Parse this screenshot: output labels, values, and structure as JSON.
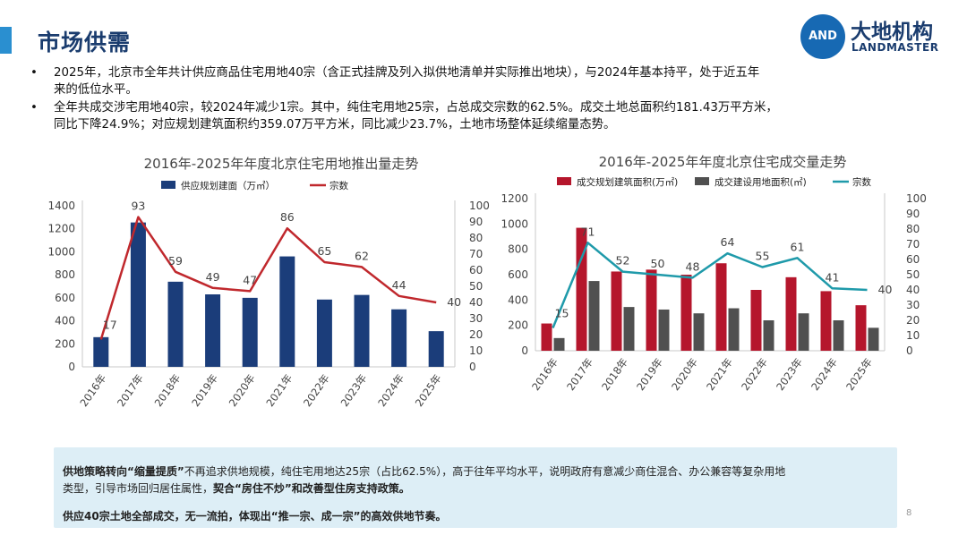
{
  "header": {
    "title": "市场供需",
    "logo_cn": "大地机构",
    "logo_en": "LANDMASTER",
    "logo_mark": "AND"
  },
  "bullets": [
    {
      "marker": "•",
      "lines": [
        "2025年，北京市全年共计供应商品住宅用地40宗（含正式挂牌及列入拟供地清单并实际推出地块），与2024年基本持平，处于近五年",
        "来的低位水平。"
      ]
    },
    {
      "marker": "•",
      "lines": [
        "全年共成交涉宅用地40宗，较2024年减少1宗。其中，纯住宅用地25宗，占总成交宗数的62.5%。成交土地总面积约181.43万平方米，",
        "同比下降24.9%；对应规划建筑面积约359.07万平方米，同比减少23.7%，土地市场整体延续缩量态势。"
      ]
    }
  ],
  "chart_data": [
    {
      "type": "bar",
      "title": "2016年-2025年年度北京住宅用地推出量走势",
      "categories": [
        "2016年",
        "2017年",
        "2018年",
        "2019年",
        "2020年",
        "2021年",
        "2022年",
        "2023年",
        "2024年",
        "2025年"
      ],
      "series": [
        {
          "name": "供应规划建面（万㎡）",
          "type": "bar",
          "axis": "left",
          "color": "#1b3d7a",
          "values": [
            258,
            1255,
            740,
            630,
            600,
            960,
            585,
            625,
            500,
            310
          ]
        },
        {
          "name": "宗数",
          "type": "line",
          "axis": "right",
          "color": "#c0282d",
          "values": [
            17,
            93,
            59,
            49,
            47,
            86,
            65,
            62,
            44,
            40
          ],
          "labels": [
            "17",
            "93",
            "59",
            "49",
            "47",
            "86",
            "65",
            "62",
            "44",
            "40"
          ]
        }
      ],
      "ylim": [
        0,
        1400
      ],
      "yticks": [
        0,
        200,
        400,
        600,
        800,
        1000,
        1200,
        1400
      ],
      "y2lim": [
        0,
        100
      ],
      "y2ticks": [
        0,
        10,
        20,
        30,
        40,
        50,
        60,
        70,
        80,
        90,
        100
      ],
      "legend": "top",
      "grid": false
    },
    {
      "type": "bar",
      "title": "2016年-2025年年度北京住宅成交量走势",
      "categories": [
        "2016年",
        "2017年",
        "2018年",
        "2019年",
        "2020年",
        "2021年",
        "2022年",
        "2023年",
        "2024年",
        "2025年"
      ],
      "series": [
        {
          "name": "成交规划建筑面积(万㎡)",
          "type": "bar",
          "axis": "left",
          "color": "#b5162c",
          "values": [
            215,
            970,
            625,
            640,
            600,
            690,
            480,
            580,
            470,
            359
          ]
        },
        {
          "name": "成交建设用地面积(㎡)",
          "type": "bar",
          "axis": "left",
          "color": "#505050",
          "values": [
            100,
            550,
            345,
            325,
            295,
            335,
            240,
            295,
            240,
            181
          ]
        },
        {
          "name": "宗数",
          "type": "line",
          "axis": "right",
          "color": "#1f9aaa",
          "values": [
            15,
            71,
            52,
            50,
            48,
            64,
            55,
            61,
            41,
            40
          ],
          "labels": [
            "15",
            "71",
            "52",
            "50",
            "48",
            "64",
            "55",
            "61",
            "41",
            "40"
          ]
        }
      ],
      "ylim": [
        0,
        1200
      ],
      "yticks": [
        0,
        200,
        400,
        600,
        800,
        1000,
        1200
      ],
      "y2lim": [
        0,
        100
      ],
      "y2ticks": [
        0,
        10,
        20,
        30,
        40,
        50,
        60,
        70,
        80,
        90,
        100
      ],
      "legend": "top",
      "grid": false
    }
  ],
  "note": {
    "line1": {
      "p1": "供地策略转向",
      "b1": "“缩量提质”",
      "p2": "不再追求供地规模，纯住宅用地达25宗（占比62.5%），高于往年平均水平，说明政府有意减少商住混合、办公兼容等复杂用地"
    },
    "line2": {
      "p1": "类型，引导市场回归居住属性，",
      "b1": "契合“房住不炒”",
      "p2": "和改善型住房支持政策。"
    },
    "line3": {
      "b1": "供应40宗土地全部成交，无一流拍，体现出“推一宗、成一宗”的高效供地节奏。"
    }
  },
  "page_number": "8",
  "colors": {
    "accent": "#2a8fd0",
    "title": "#1a3c6e",
    "note_bg": "#ddeef6"
  }
}
